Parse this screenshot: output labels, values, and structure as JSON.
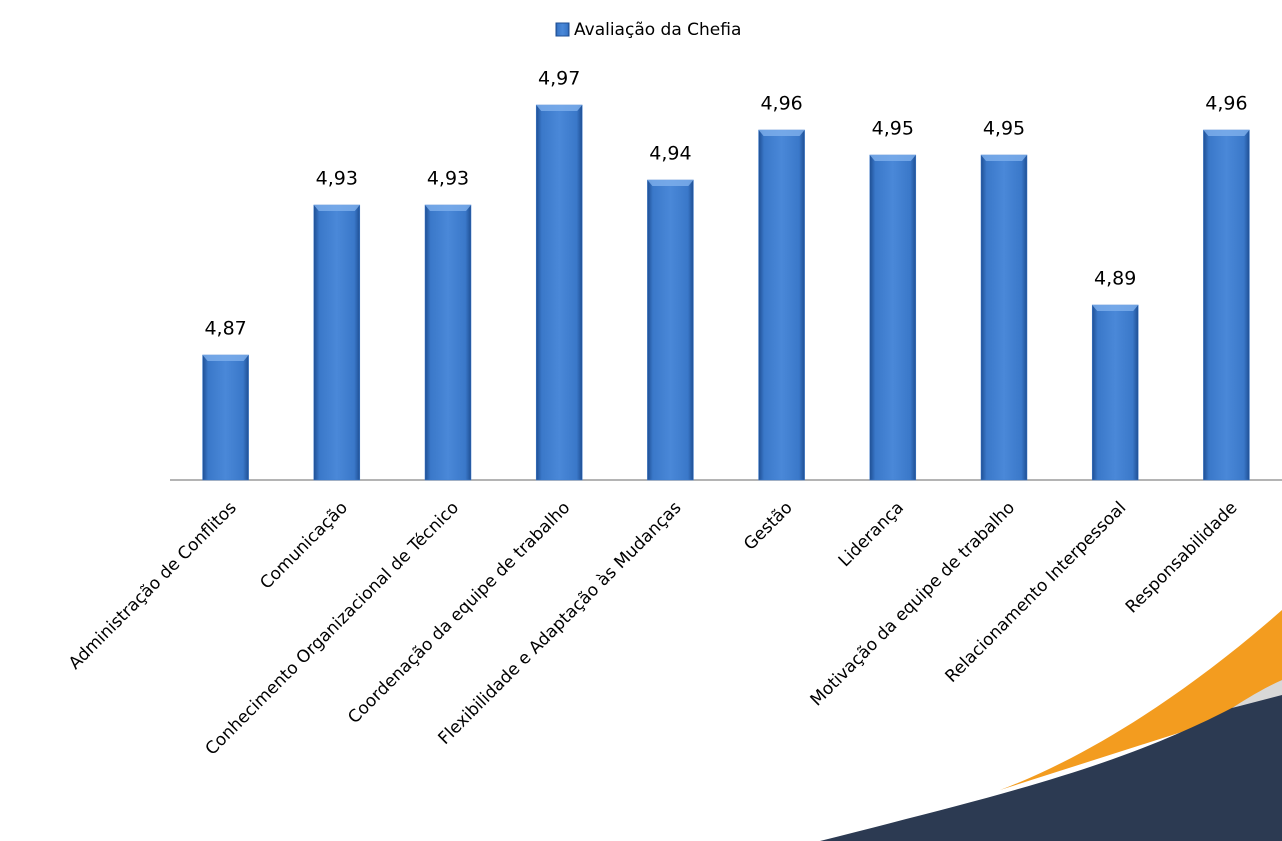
{
  "chart_data": {
    "type": "bar",
    "categories": [
      "Administração de Conflitos",
      "Comunicação",
      "Conhecimento Organizacional de Técnico",
      "Coordenação da equipe de trabalho",
      "Flexibilidade e Adaptação às Mudanças",
      "Gestão",
      "Liderança",
      "Motivação da equipe de trabalho",
      "Relacionamento Interpessoal",
      "Responsabilidade"
    ],
    "series": [
      {
        "name": "Avaliação da Chefia",
        "color": "#3a78c9",
        "values": [
          4.87,
          4.93,
          4.93,
          4.97,
          4.94,
          4.96,
          4.95,
          4.95,
          4.89,
          4.96
        ],
        "value_labels": [
          "4,87",
          "4,93",
          "4,93",
          "4,97",
          "4,94",
          "4,96",
          "4,95",
          "4,95",
          "4,89",
          "4,96"
        ]
      }
    ],
    "ylim": [
      4.82,
      5.0
    ],
    "legend": "top"
  }
}
